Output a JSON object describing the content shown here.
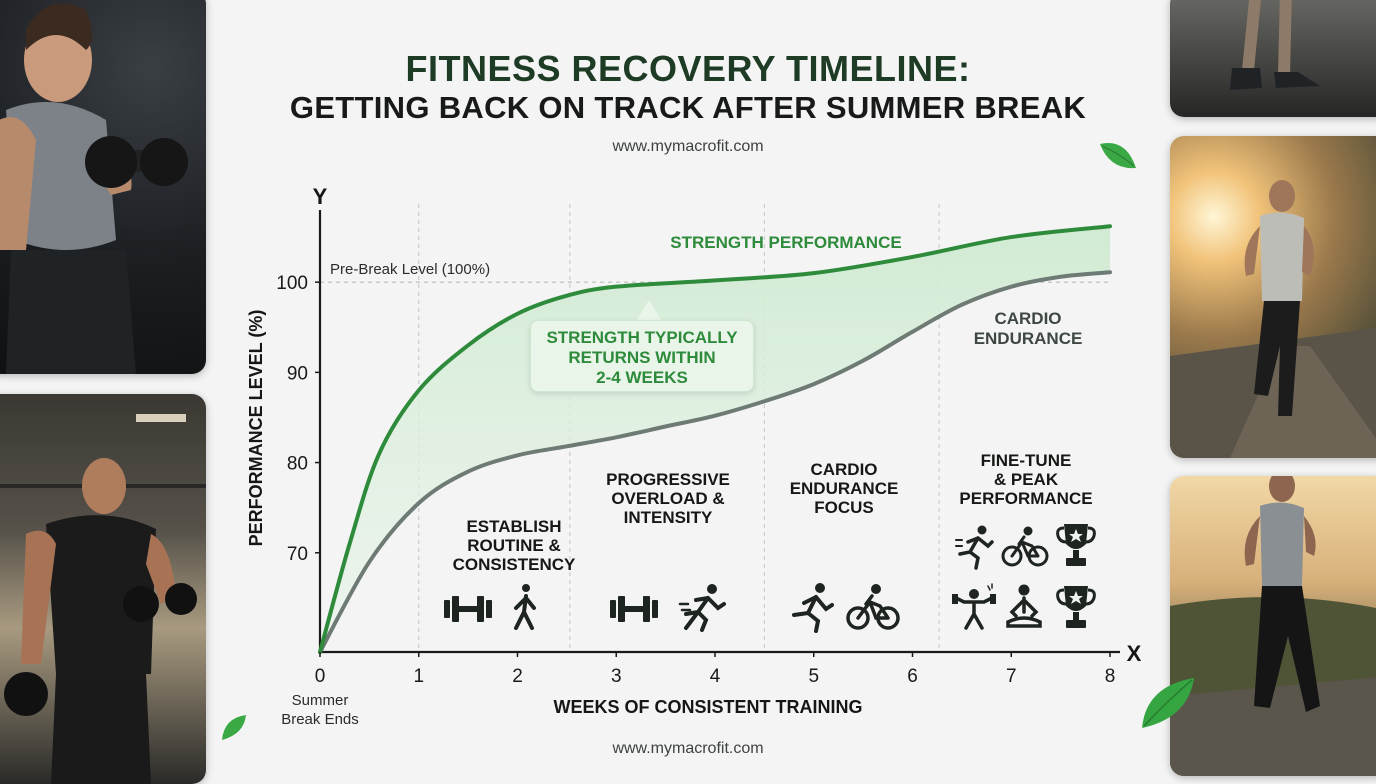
{
  "title": "FITNESS RECOVERY TIMELINE:",
  "subtitle": "GETTING BACK ON TRACK AFTER SUMMER BREAK",
  "website_top": "www.mymacrofit.com",
  "website_bottom": "www.mymacrofit.com",
  "colors": {
    "strength": "#2e8b3b",
    "cardio": "#6e7a74",
    "fill": "#d7eed8",
    "grid": "#c9cfcb",
    "axis": "#1a1a1a"
  },
  "chart_data": {
    "type": "line",
    "title": "FITNESS RECOVERY TIMELINE: GETTING BACK ON TRACK AFTER SUMMER BREAK",
    "xlabel": "WEEKS OF CONSISTENT TRAINING",
    "ylabel": "PERFORMANCE LEVEL (%)",
    "x_axis_letter": "X",
    "y_axis_letter": "Y",
    "xlim": [
      0,
      8
    ],
    "ylim": [
      59,
      108
    ],
    "x_ticks": [
      "0",
      "1",
      "2",
      "3",
      "4",
      "5",
      "6",
      "7",
      "8"
    ],
    "x_tick_note": [
      "Summer",
      "Break Ends"
    ],
    "y_ticks": [
      "70",
      "80",
      "90",
      "100"
    ],
    "reference_line": {
      "y": 100,
      "label": "Pre-Break Level (100%)"
    },
    "phase_dividers_x": [
      1,
      2.53,
      4.5,
      6.27
    ],
    "series": [
      {
        "name": "STRENGTH PERFORMANCE",
        "x": [
          0,
          0.3,
          0.6,
          1,
          1.5,
          2,
          2.5,
          3,
          4,
          5,
          6,
          7,
          8
        ],
        "y": [
          59,
          71,
          81,
          88,
          93,
          96.5,
          98.5,
          99.5,
          100.2,
          101,
          102.8,
          105,
          106.2
        ]
      },
      {
        "name": "CARDIO ENDURANCE",
        "x": [
          0,
          0.5,
          1,
          1.5,
          2,
          2.5,
          3,
          3.5,
          4,
          4.5,
          5,
          5.5,
          6,
          6.5,
          7,
          7.5,
          8
        ],
        "y": [
          59,
          69,
          75.5,
          79,
          80.8,
          81.8,
          82.8,
          84,
          85.2,
          86.8,
          88.7,
          91.3,
          94.5,
          97.5,
          99.5,
          100.6,
          101.1
        ]
      }
    ],
    "series_labels": {
      "strength": "STRENGTH PERFORMANCE",
      "cardio_line1": "CARDIO",
      "cardio_line2": "ENDURANCE"
    },
    "callout": [
      "STRENGTH TYPICALLY",
      "RETURNS WITHIN",
      "2-4 WEEKS"
    ],
    "phases": [
      {
        "lines": [
          "ESTABLISH",
          "ROUTINE &",
          "CONSISTENCY"
        ],
        "icons": [
          "dumbbell-icon",
          "walking-icon"
        ]
      },
      {
        "lines": [
          "PROGRESSIVE",
          "OVERLOAD &",
          "INTENSITY"
        ],
        "icons": [
          "dumbbell-icon",
          "running-icon"
        ]
      },
      {
        "lines": [
          "CARDIO",
          "ENDURANCE",
          "FOCUS"
        ],
        "icons": [
          "running-icon",
          "cycling-icon"
        ]
      },
      {
        "lines": [
          "FINE-TUNE",
          "& PEAK",
          "PERFORMANCE"
        ],
        "icons": [
          "sprinting-icon",
          "cycling-icon",
          "trophy-icon",
          "weightlifting-icon",
          "meditation-icon",
          "trophy-icon"
        ]
      }
    ]
  }
}
